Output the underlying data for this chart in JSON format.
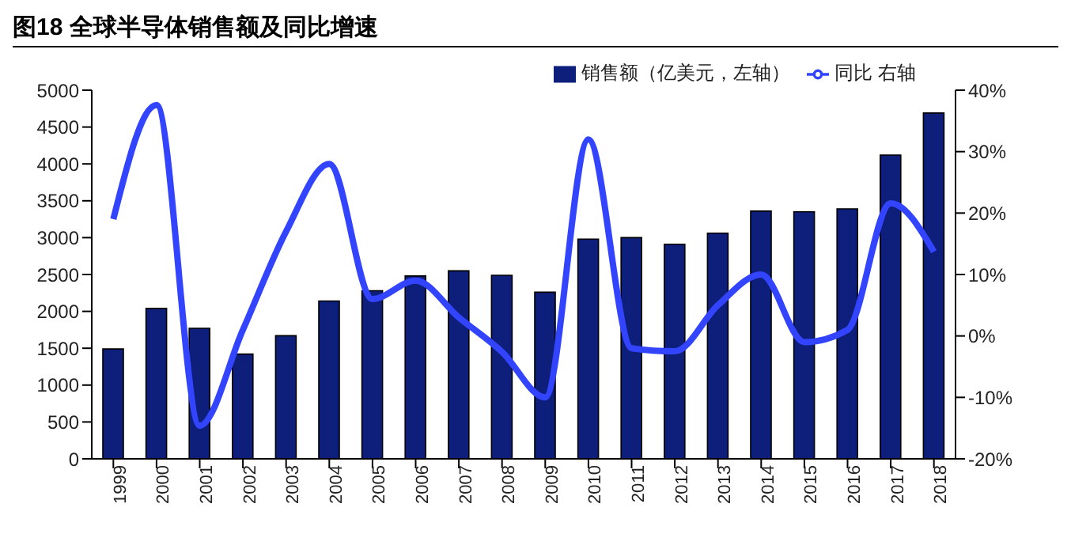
{
  "chart_data": {
    "type": "bar",
    "title": "图18  全球半导体销售额及同比增速",
    "categories": [
      "1999",
      "2000",
      "2001",
      "2002",
      "2003",
      "2004",
      "2005",
      "2006",
      "2007",
      "2008",
      "2009",
      "2010",
      "2011",
      "2012",
      "2013",
      "2014",
      "2015",
      "2016",
      "2017",
      "2018"
    ],
    "series": [
      {
        "name": "销售额（亿美元，左轴）",
        "color": "#0d1f7a",
        "values": [
          1490,
          2040,
          1770,
          1420,
          1670,
          2140,
          2280,
          2480,
          2550,
          2490,
          2260,
          2980,
          3000,
          2910,
          3060,
          3360,
          3350,
          3390,
          4120,
          4690
        ]
      },
      {
        "name": "同比  右轴",
        "type": "line",
        "axis": "y2",
        "color": "#3344ff",
        "values": [
          19,
          37.6,
          -14.6,
          1,
          17,
          28,
          6,
          9,
          3,
          -2.6,
          -10,
          32,
          -2,
          -2.5,
          5,
          10,
          -1,
          1,
          21.6,
          13.7
        ]
      }
    ],
    "ylim": [
      0,
      5000
    ],
    "yticks": [
      0,
      500,
      1000,
      1500,
      2000,
      2500,
      3000,
      3500,
      4000,
      4500,
      5000
    ],
    "y2lim": [
      -20,
      40
    ],
    "y2ticks": [
      {
        "value": -20,
        "label": "-20%"
      },
      {
        "value": -10,
        "label": "-10%"
      },
      {
        "value": 0,
        "label": "0%"
      },
      {
        "value": 10,
        "label": "10%"
      },
      {
        "value": 20,
        "label": "20%"
      },
      {
        "value": 30,
        "label": "30%"
      },
      {
        "value": 40,
        "label": "40%"
      }
    ],
    "grid": false,
    "legend": "top right",
    "marker": "none",
    "line_style": "solid"
  }
}
